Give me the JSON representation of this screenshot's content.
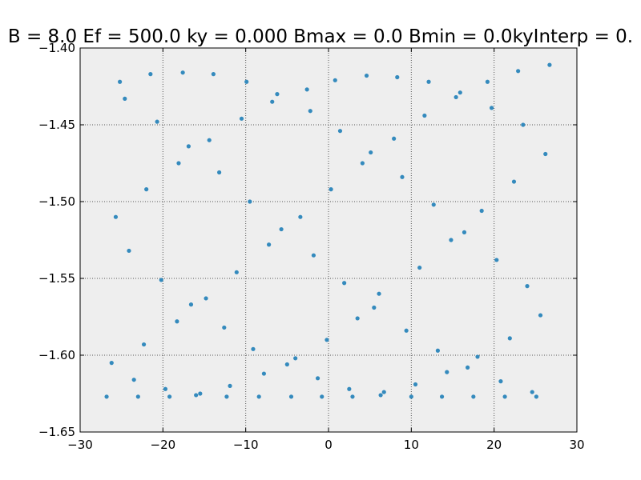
{
  "chart_data": {
    "type": "scatter",
    "title": "B = 8.0 Ef = 500.0 ky = 0.000 Bmax = 0.0 Bmin = 0.0kyInterp = 0.",
    "xlabel": "",
    "ylabel": "",
    "xlim": [
      -30,
      30
    ],
    "ylim": [
      -1.65,
      -1.4
    ],
    "xticks": [
      "−30",
      "−20",
      "−10",
      "0",
      "10",
      "20",
      "30"
    ],
    "xtick_values": [
      -30,
      -20,
      -10,
      0,
      10,
      20,
      30
    ],
    "yticks": [
      "−1.65",
      "−1.60",
      "−1.55",
      "−1.50",
      "−1.45",
      "−1.40"
    ],
    "ytick_values": [
      -1.65,
      -1.6,
      -1.55,
      -1.5,
      -1.45,
      -1.4
    ],
    "grid": true,
    "legend": "none",
    "colors": {
      "point": "#348ABD",
      "background": "#EEEEEE",
      "grid": "#555555"
    },
    "x": [
      -25.2,
      -21.5,
      -17.6,
      -13.9,
      -9.9,
      -6.2,
      -2.6,
      0.8,
      4.6,
      8.3,
      12.1,
      15.9,
      19.2,
      22.9,
      26.7,
      -24.6,
      -6.8,
      -2.2,
      11.6,
      15.4,
      19.7,
      -20.7,
      -10.5,
      1.4,
      23.5,
      -16.9,
      -14.4,
      7.9,
      5.1,
      -18.1,
      4.1,
      26.2,
      -13.2,
      8.9,
      -22.0,
      0.3,
      22.4,
      -9.5,
      12.7,
      18.5,
      -25.7,
      -3.4,
      -5.7,
      16.4,
      -7.2,
      14.8,
      -24.1,
      -1.8,
      20.3,
      11.0,
      -11.1,
      -20.2,
      1.9,
      24.0,
      -16.6,
      6.1,
      -14.8,
      5.5,
      25.6,
      -18.3,
      3.5,
      -12.6,
      9.4,
      21.9,
      -9.1,
      13.2,
      18.0,
      -22.3,
      -4.0,
      -0.2,
      -26.2,
      -7.8,
      -5.0,
      16.8,
      -23.5,
      14.3,
      -1.3,
      2.5,
      -19.7,
      6.7,
      24.6,
      -11.9,
      10.5,
      20.8,
      -15.5,
      -26.8,
      -23.0,
      -19.2,
      -16.0,
      -12.3,
      -8.4,
      -4.5,
      -0.8,
      2.9,
      6.3,
      10.0,
      13.7,
      17.5,
      21.3,
      25.1
    ],
    "y": [
      -1.422,
      -1.417,
      -1.416,
      -1.417,
      -1.422,
      -1.43,
      -1.427,
      -1.421,
      -1.418,
      -1.419,
      -1.422,
      -1.429,
      -1.422,
      -1.415,
      -1.411,
      -1.433,
      -1.435,
      -1.441,
      -1.444,
      -1.432,
      -1.439,
      -1.448,
      -1.446,
      -1.454,
      -1.45,
      -1.464,
      -1.46,
      -1.459,
      -1.468,
      -1.475,
      -1.475,
      -1.469,
      -1.481,
      -1.484,
      -1.492,
      -1.492,
      -1.487,
      -1.5,
      -1.502,
      -1.506,
      -1.51,
      -1.51,
      -1.518,
      -1.52,
      -1.528,
      -1.525,
      -1.532,
      -1.535,
      -1.538,
      -1.543,
      -1.546,
      -1.551,
      -1.553,
      -1.555,
      -1.567,
      -1.56,
      -1.563,
      -1.569,
      -1.574,
      -1.578,
      -1.576,
      -1.582,
      -1.584,
      -1.589,
      -1.596,
      -1.597,
      -1.601,
      -1.593,
      -1.602,
      -1.59,
      -1.605,
      -1.612,
      -1.606,
      -1.608,
      -1.616,
      -1.611,
      -1.615,
      -1.622,
      -1.622,
      -1.624,
      -1.624,
      -1.62,
      -1.619,
      -1.617,
      -1.625,
      -1.627,
      -1.627,
      -1.627,
      -1.626,
      -1.627,
      -1.627,
      -1.627,
      -1.627,
      -1.627,
      -1.626,
      -1.627,
      -1.627,
      -1.627,
      -1.627,
      -1.627
    ]
  }
}
